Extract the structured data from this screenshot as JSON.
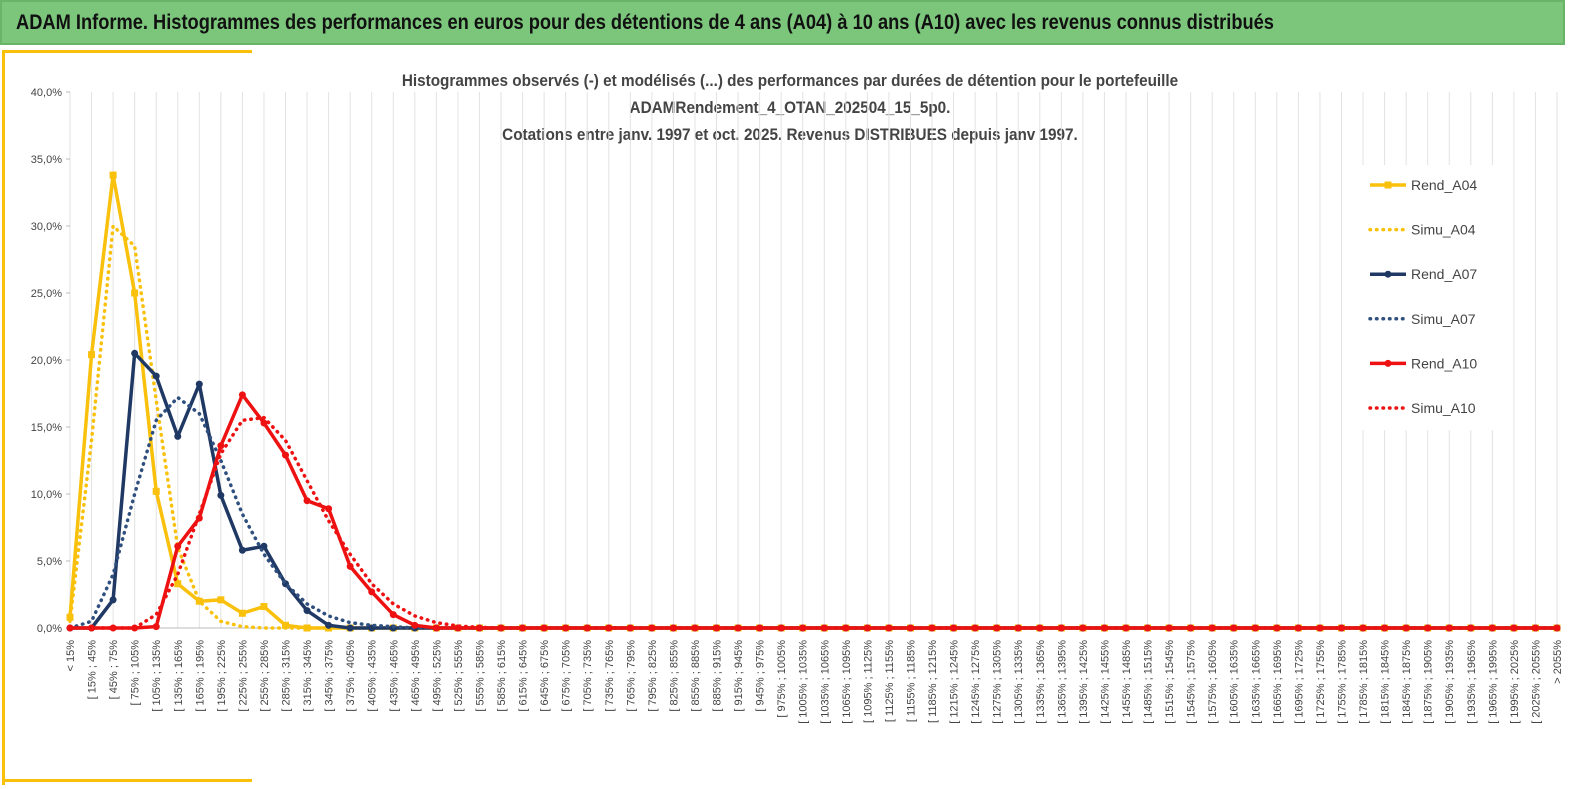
{
  "header": {
    "title": "ADAM Informe. Histogrammes des performances en euros pour des détentions de 4 ans (A04) à 10 ans (A10) avec les revenus connus distribués"
  },
  "chart_data": {
    "type": "line",
    "title": [
      "Histogrammes observés (-) et modélisés (...) des performances par durées de détention pour le portefeuille",
      "ADAMRendement_4_OTAN_202504_15_5p0.",
      "Cotations entre janv. 1997 et oct. 2025. Revenus DISTRIBUES depuis janv 1997."
    ],
    "categories": [
      "< 15%",
      "[ 15% ; 45%",
      "[ 45% ; 75%",
      "[ 75% ; 105%",
      "[ 105% ; 135%",
      "[ 135% ; 165%",
      "[ 165% ; 195%",
      "[ 195% ; 225%",
      "[ 225% ; 255%",
      "[ 255% ; 285%",
      "[ 285% ; 315%",
      "[ 315% ; 345%",
      "[ 345% ; 375%",
      "[ 375% ; 405%",
      "[ 405% ; 435%",
      "[ 435% ; 465%",
      "[ 465% ; 495%",
      "[ 495% ; 525%",
      "[ 525% ; 555%",
      "[ 555% ; 585%",
      "[ 585% ; 615%",
      "[ 615% ; 645%",
      "[ 645% ; 675%",
      "[ 675% ; 705%",
      "[ 705% ; 735%",
      "[ 735% ; 765%",
      "[ 765% ; 795%",
      "[ 795% ; 825%",
      "[ 825% ; 855%",
      "[ 855% ; 885%",
      "[ 885% ; 915%",
      "[ 915% ; 945%",
      "[ 945% ; 975%",
      "[ 975% ; 1005%",
      "[ 1005% ; 1035%",
      "[ 1035% ; 1065%",
      "[ 1065% ; 1095%",
      "[ 1095% ; 1125%",
      "[ 1125% ; 1155%",
      "[ 1155% ; 1185%",
      "[ 1185% ; 1215%",
      "[ 1215% ; 1245%",
      "[ 1245% ; 1275%",
      "[ 1275% ; 1305%",
      "[ 1305% ; 1335%",
      "[ 1335% ; 1365%",
      "[ 1365% ; 1395%",
      "[ 1395% ; 1425%",
      "[ 1425% ; 1455%",
      "[ 1455% ; 1485%",
      "[ 1485% ; 1515%",
      "[ 1515% ; 1545%",
      "[ 1545% ; 1575%",
      "[ 1575% ; 1605%",
      "[ 1605% ; 1635%",
      "[ 1635% ; 1665%",
      "[ 1665% ; 1695%",
      "[ 1695% ; 1725%",
      "[ 1725% ; 1755%",
      "[ 1755% ; 1785%",
      "[ 1785% ; 1815%",
      "[ 1815% ; 1845%",
      "[ 1845% ; 1875%",
      "[ 1875% ; 1905%",
      "[ 1905% ; 1935%",
      "[ 1935% ; 1965%",
      "[ 1965% ; 1995%",
      "[ 1995% ; 2025%",
      "[ 2025% ; 2055%",
      "> 2055%"
    ],
    "series": [
      {
        "name": "Rend_A04",
        "color": "#f9c00c",
        "style": "solid",
        "marker": "square",
        "values": [
          0.8,
          20.4,
          33.8,
          25.0,
          10.2,
          3.3,
          2.0,
          2.1,
          1.1,
          1.6,
          0.2,
          0,
          0,
          0,
          0,
          0,
          0,
          0,
          0,
          0,
          0,
          0,
          0,
          0,
          0,
          0,
          0,
          0,
          0,
          0,
          0,
          0,
          0,
          0,
          0,
          0,
          0,
          0,
          0,
          0,
          0,
          0,
          0,
          0,
          0,
          0,
          0,
          0,
          0,
          0,
          0,
          0,
          0,
          0,
          0,
          0,
          0,
          0,
          0,
          0,
          0,
          0,
          0,
          0,
          0,
          0,
          0,
          0,
          0,
          0
        ]
      },
      {
        "name": "Simu_A04",
        "color": "#f9c00c",
        "style": "dotted",
        "values": [
          0.5,
          14,
          30,
          28.5,
          17,
          6,
          2,
          0.5,
          0.1,
          0,
          0,
          0,
          0,
          0,
          0,
          0,
          0,
          0,
          0,
          0,
          0,
          0,
          0,
          0,
          0,
          0,
          0,
          0,
          0,
          0,
          0,
          0,
          0,
          0,
          0,
          0,
          0,
          0,
          0,
          0,
          0,
          0,
          0,
          0,
          0,
          0,
          0,
          0,
          0,
          0,
          0,
          0,
          0,
          0,
          0,
          0,
          0,
          0,
          0,
          0,
          0,
          0,
          0,
          0,
          0,
          0,
          0,
          0,
          0,
          0
        ]
      },
      {
        "name": "Rend_A07",
        "color": "#1f3864",
        "style": "solid",
        "marker": "circle",
        "values": [
          0,
          0,
          2.1,
          20.5,
          18.8,
          14.3,
          18.2,
          9.9,
          5.8,
          6.1,
          3.3,
          1.3,
          0.2,
          0,
          0,
          0,
          0,
          0,
          0,
          0,
          0,
          0,
          0,
          0,
          0,
          0,
          0,
          0,
          0,
          0,
          0,
          0,
          0,
          0,
          0,
          0,
          0,
          0,
          0,
          0,
          0,
          0,
          0,
          0,
          0,
          0,
          0,
          0,
          0,
          0,
          0,
          0,
          0,
          0,
          0,
          0,
          0,
          0,
          0,
          0,
          0,
          0,
          0,
          0,
          0,
          0,
          0,
          0,
          0,
          0
        ]
      },
      {
        "name": "Simu_A07",
        "color": "#2f4f7f",
        "style": "dotted",
        "values": [
          0,
          0.5,
          4,
          10,
          15.5,
          17.2,
          16,
          12.5,
          8.5,
          5.5,
          3.3,
          1.8,
          0.9,
          0.4,
          0.2,
          0.1,
          0,
          0,
          0,
          0,
          0,
          0,
          0,
          0,
          0,
          0,
          0,
          0,
          0,
          0,
          0,
          0,
          0,
          0,
          0,
          0,
          0,
          0,
          0,
          0,
          0,
          0,
          0,
          0,
          0,
          0,
          0,
          0,
          0,
          0,
          0,
          0,
          0,
          0,
          0,
          0,
          0,
          0,
          0,
          0,
          0,
          0,
          0,
          0,
          0,
          0,
          0,
          0,
          0,
          0
        ]
      },
      {
        "name": "Rend_A10",
        "color": "#ee1111",
        "style": "solid",
        "marker": "circle",
        "values": [
          0,
          0,
          0,
          0,
          0.1,
          6.1,
          8.2,
          13.6,
          17.4,
          15.3,
          12.9,
          9.5,
          8.9,
          4.6,
          2.7,
          1.0,
          0.2,
          0,
          0,
          0,
          0,
          0,
          0,
          0,
          0,
          0,
          0,
          0,
          0,
          0,
          0,
          0,
          0,
          0,
          0,
          0,
          0,
          0,
          0,
          0,
          0,
          0,
          0,
          0,
          0,
          0,
          0,
          0,
          0,
          0,
          0,
          0,
          0,
          0,
          0,
          0,
          0,
          0,
          0,
          0,
          0,
          0,
          0,
          0,
          0,
          0,
          0,
          0,
          0,
          0
        ]
      },
      {
        "name": "Simu_A10",
        "color": "#ee1111",
        "style": "dotted",
        "values": [
          0,
          0,
          0,
          0,
          1,
          4,
          8.5,
          13,
          15.5,
          15.7,
          14,
          11,
          8,
          5.5,
          3.3,
          1.8,
          0.9,
          0.4,
          0.15,
          0.05,
          0,
          0,
          0,
          0,
          0,
          0,
          0,
          0,
          0,
          0,
          0,
          0,
          0,
          0,
          0,
          0,
          0,
          0,
          0,
          0,
          0,
          0,
          0,
          0,
          0,
          0,
          0,
          0,
          0,
          0,
          0,
          0,
          0,
          0,
          0,
          0,
          0,
          0,
          0,
          0,
          0,
          0,
          0,
          0,
          0,
          0,
          0,
          0,
          0,
          0
        ]
      }
    ],
    "ylim": [
      0,
      40
    ],
    "yticks": [
      {
        "value": 0,
        "label": "0,0%"
      },
      {
        "value": 5,
        "label": "5,0%"
      },
      {
        "value": 10,
        "label": "10,0%"
      },
      {
        "value": 15,
        "label": "15,0%"
      },
      {
        "value": 20,
        "label": "20,0%"
      },
      {
        "value": 25,
        "label": "25,0%"
      },
      {
        "value": 30,
        "label": "30,0%"
      },
      {
        "value": 35,
        "label": "35,0%"
      },
      {
        "value": 40,
        "label": "40,0%"
      }
    ],
    "grid": "x",
    "legend": "right"
  }
}
